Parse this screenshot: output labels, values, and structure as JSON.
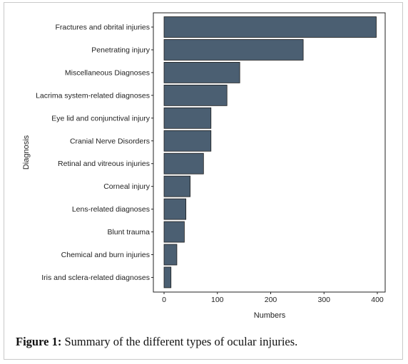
{
  "chart_data": {
    "type": "bar",
    "orientation": "horizontal",
    "categories": [
      "Fractures and obrital injuries",
      "Penetrating injury",
      "Miscellaneous Diagnoses",
      "Lacrima system-related diagnoses",
      "Eye lid and conjunctival injury",
      "Cranial Nerve Disorders",
      "Retinal and vitreous injuries",
      "Corneal injury",
      "Lens-related diagnoses",
      "Blunt trauma",
      "Chemical and burn injuries",
      "Iris and sclera-related diagnoses"
    ],
    "values": [
      398,
      261,
      142,
      118,
      88,
      88,
      74,
      49,
      41,
      38,
      24,
      13
    ],
    "xlabel": "Numbers",
    "ylabel": "Diagnosis",
    "xlim": [
      -10,
      415
    ],
    "xticks": [
      0,
      100,
      200,
      300,
      400
    ],
    "xtick_labels": [
      "0",
      "100",
      "200",
      "300",
      "400"
    ],
    "grid": false,
    "bar_color": "#4b5f72"
  },
  "caption": {
    "label": "Figure 1:",
    "text": " Summary of the different types of ocular injuries."
  }
}
